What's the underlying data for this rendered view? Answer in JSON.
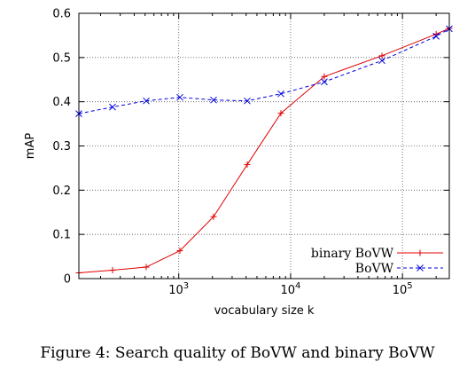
{
  "chart_data": {
    "type": "line",
    "xlabel": "vocabulary size k",
    "ylabel": "mAP",
    "xscale": "log",
    "xlim": [
      128,
      262144
    ],
    "ylim": [
      0,
      0.6
    ],
    "grid": true,
    "legend_position": "bottom-right",
    "x_ticks": [
      {
        "value": 1000,
        "base": "10",
        "exp": "3"
      },
      {
        "value": 10000,
        "base": "10",
        "exp": "4"
      },
      {
        "value": 100000,
        "base": "10",
        "exp": "5"
      }
    ],
    "y_ticks": [
      "0",
      "0.1",
      "0.2",
      "0.3",
      "0.4",
      "0.5",
      "0.6"
    ],
    "series": [
      {
        "name": "binary BoVW",
        "color": "#e00000",
        "dash": "solid",
        "marker": "plus",
        "x": [
          128,
          256,
          512,
          1024,
          2048,
          4096,
          8192,
          20000,
          65536,
          200000,
          262144
        ],
        "y": [
          0.013,
          0.019,
          0.026,
          0.063,
          0.14,
          0.258,
          0.374,
          0.457,
          0.504,
          0.553,
          0.566
        ]
      },
      {
        "name": "BoVW",
        "color": "#0000e0",
        "dash": "dashed",
        "marker": "cross",
        "x": [
          128,
          256,
          512,
          1024,
          2048,
          4096,
          8192,
          20000,
          65536,
          200000,
          262144
        ],
        "y": [
          0.373,
          0.388,
          0.402,
          0.41,
          0.404,
          0.402,
          0.418,
          0.445,
          0.493,
          0.548,
          0.565
        ]
      }
    ]
  },
  "caption": "Figure 4: Search quality of BoVW and binary BoVW"
}
